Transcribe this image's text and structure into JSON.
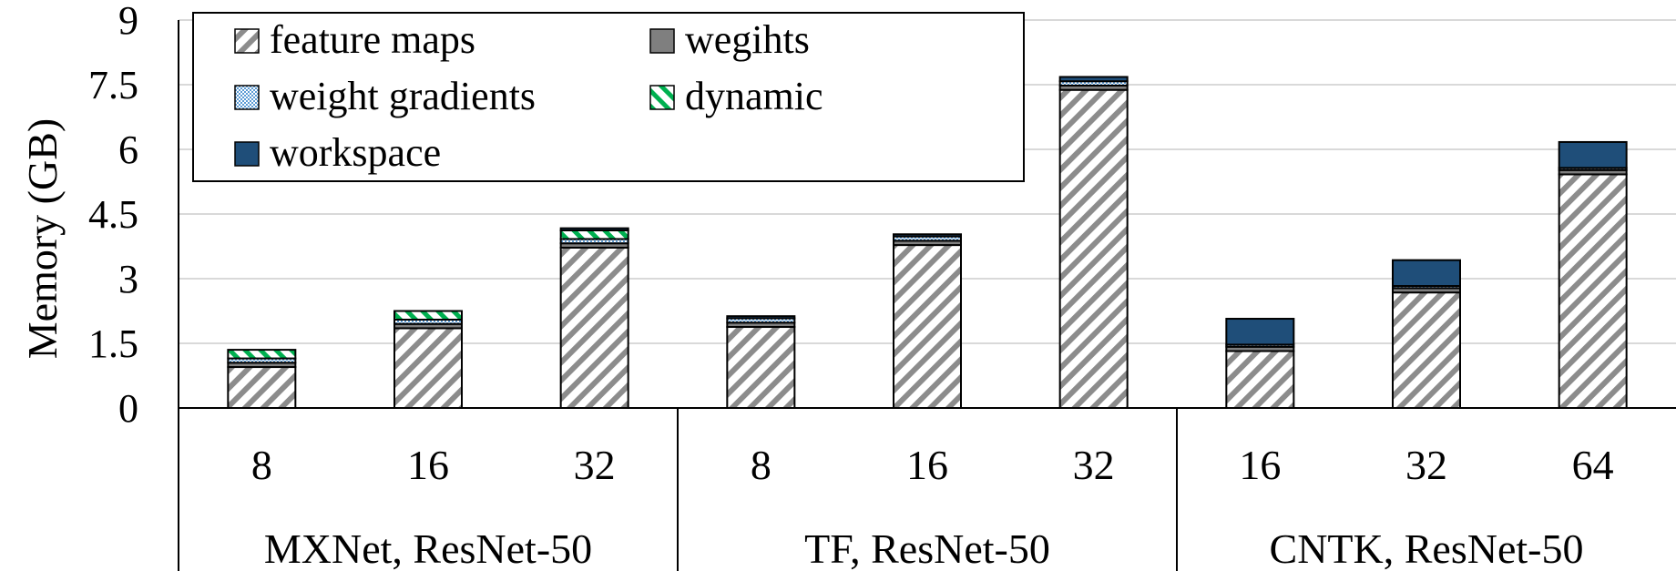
{
  "chart_data": {
    "type": "bar",
    "stacked": true,
    "ylabel": "Memory (GB)",
    "ylim": [
      0,
      9
    ],
    "yticks": [
      "0",
      "1.5",
      "3",
      "4.5",
      "6",
      "7.5",
      "9"
    ],
    "grid": true,
    "legend_position": "top-left",
    "groups": [
      {
        "label": "MXNet, ResNet-50",
        "categories": [
          "8",
          "16",
          "32"
        ]
      },
      {
        "label": "TF, ResNet-50",
        "categories": [
          "8",
          "16",
          "32"
        ]
      },
      {
        "label": "CNTK, ResNet-50",
        "categories": [
          "16",
          "32",
          "64"
        ]
      }
    ],
    "categories": [
      "8",
      "16",
      "32",
      "8",
      "16",
      "32",
      "16",
      "32",
      "64"
    ],
    "series": [
      {
        "name": "feature maps",
        "color": "#8c8c8c",
        "pattern": "diagonal-hatch",
        "values": [
          0.95,
          1.85,
          3.72,
          1.88,
          3.78,
          7.38,
          1.32,
          2.68,
          5.42
        ]
      },
      {
        "name": "wegihts",
        "color": "#7f7f7f",
        "pattern": "solid",
        "values": [
          0.1,
          0.1,
          0.1,
          0.1,
          0.1,
          0.1,
          0.1,
          0.1,
          0.1
        ]
      },
      {
        "name": "weight gradients",
        "color": "#9dc3e6",
        "pattern": "dots",
        "values": [
          0.1,
          0.1,
          0.1,
          0.1,
          0.1,
          0.1,
          0.05,
          0.05,
          0.05
        ]
      },
      {
        "name": "dynamic",
        "color": "#00b050",
        "pattern": "diagonal-stripes",
        "values": [
          0.2,
          0.2,
          0.2,
          0.0,
          0.0,
          0.0,
          0.0,
          0.0,
          0.0
        ]
      },
      {
        "name": "workspace",
        "color": "#1f4e79",
        "pattern": "solid",
        "values": [
          0.0,
          0.0,
          0.05,
          0.05,
          0.05,
          0.1,
          0.6,
          0.6,
          0.6
        ]
      }
    ]
  }
}
